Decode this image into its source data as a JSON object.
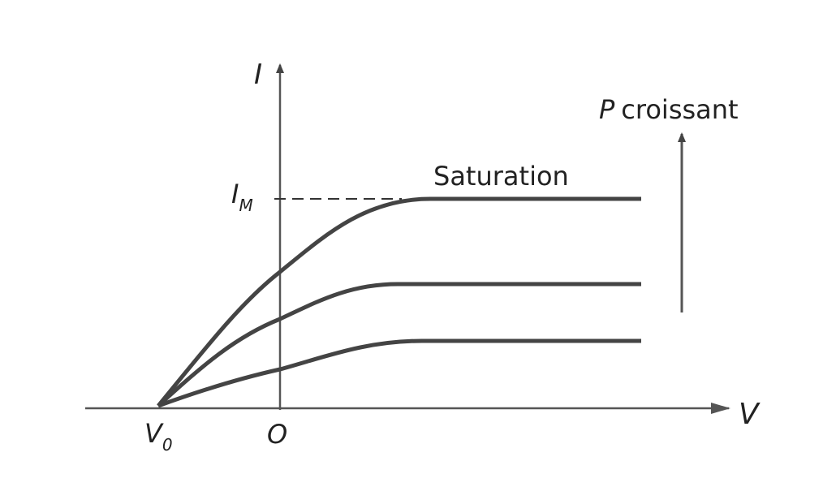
{
  "labels": {
    "y_axis": "I",
    "x_axis": "V",
    "origin": "O",
    "i_m": {
      "main": "I",
      "sub": "M"
    },
    "v_0": {
      "main": "V",
      "sub": "0"
    },
    "saturation": "Saturation",
    "p_croissant": {
      "symbol": "P",
      "text": "croissant"
    }
  }
}
